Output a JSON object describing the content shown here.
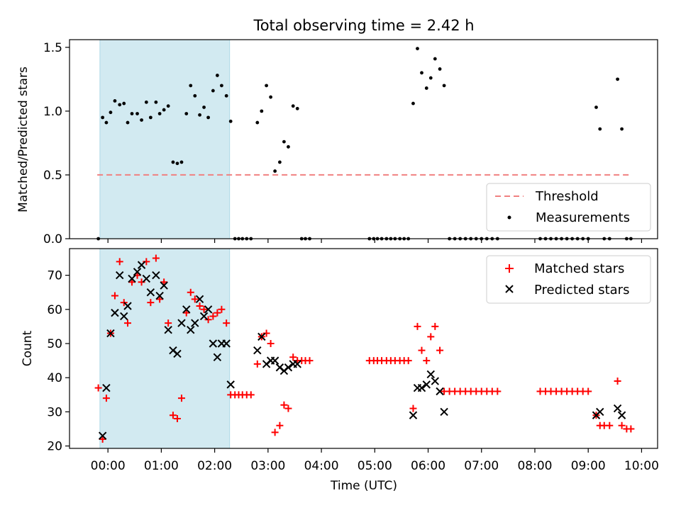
{
  "title": "Total observing time = 2.42 h",
  "x_label": "Time (UTC)",
  "x_ticks": [
    "00:00",
    "01:00",
    "02:00",
    "03:00",
    "04:00",
    "05:00",
    "06:00",
    "07:00",
    "08:00",
    "09:00",
    "10:00"
  ],
  "chart_data": [
    {
      "type": "scatter",
      "panel": "top",
      "ylabel": "Matched/Predicted stars",
      "xlim": [
        -0.72,
        10.3
      ],
      "ylim": [
        0,
        1.56
      ],
      "yticks": [
        "0.0",
        "0.5",
        "1.0",
        "1.5"
      ],
      "shaded_interval": [
        -0.15,
        2.28
      ],
      "shade_color": "#add8e6",
      "threshold": {
        "name": "Threshold",
        "value": 0.5,
        "x_range": [
          -0.2,
          9.8
        ],
        "color": "#f08080",
        "style": "dashed"
      },
      "series": [
        {
          "name": "Measurements",
          "marker": "dot",
          "color": "#000000",
          "points": [
            [
              -0.18,
              0.0
            ],
            [
              -0.1,
              0.95
            ],
            [
              -0.03,
              0.91
            ],
            [
              0.05,
              0.99
            ],
            [
              0.13,
              1.08
            ],
            [
              0.22,
              1.05
            ],
            [
              0.3,
              1.06
            ],
            [
              0.37,
              0.91
            ],
            [
              0.45,
              0.98
            ],
            [
              0.55,
              0.98
            ],
            [
              0.63,
              0.93
            ],
            [
              0.72,
              1.07
            ],
            [
              0.8,
              0.95
            ],
            [
              0.9,
              1.07
            ],
            [
              0.97,
              0.98
            ],
            [
              1.05,
              1.01
            ],
            [
              1.13,
              1.04
            ],
            [
              1.22,
              0.6
            ],
            [
              1.3,
              0.59
            ],
            [
              1.38,
              0.6
            ],
            [
              1.47,
              0.98
            ],
            [
              1.55,
              1.2
            ],
            [
              1.63,
              1.12
            ],
            [
              1.72,
              0.97
            ],
            [
              1.8,
              1.03
            ],
            [
              1.88,
              0.95
            ],
            [
              1.97,
              1.16
            ],
            [
              2.05,
              1.28
            ],
            [
              2.13,
              1.2
            ],
            [
              2.22,
              1.12
            ],
            [
              2.3,
              0.92
            ],
            [
              2.38,
              0.0
            ],
            [
              2.45,
              0.0
            ],
            [
              2.52,
              0.0
            ],
            [
              2.6,
              0.0
            ],
            [
              2.68,
              0.0
            ],
            [
              2.8,
              0.91
            ],
            [
              2.88,
              1.0
            ],
            [
              2.97,
              1.2
            ],
            [
              3.05,
              1.11
            ],
            [
              3.13,
              0.53
            ],
            [
              3.22,
              0.6
            ],
            [
              3.3,
              0.76
            ],
            [
              3.38,
              0.72
            ],
            [
              3.47,
              1.04
            ],
            [
              3.55,
              1.02
            ],
            [
              3.63,
              0.0
            ],
            [
              3.7,
              0.0
            ],
            [
              3.78,
              0.0
            ],
            [
              4.9,
              0.0
            ],
            [
              4.98,
              0.0
            ],
            [
              5.05,
              0.0
            ],
            [
              5.13,
              0.0
            ],
            [
              5.22,
              0.0
            ],
            [
              5.3,
              0.0
            ],
            [
              5.38,
              0.0
            ],
            [
              5.47,
              0.0
            ],
            [
              5.55,
              0.0
            ],
            [
              5.63,
              0.0
            ],
            [
              5.72,
              1.06
            ],
            [
              5.8,
              1.49
            ],
            [
              5.88,
              1.3
            ],
            [
              5.97,
              1.18
            ],
            [
              6.05,
              1.26
            ],
            [
              6.13,
              1.41
            ],
            [
              6.22,
              1.33
            ],
            [
              6.3,
              1.2
            ],
            [
              6.4,
              0.0
            ],
            [
              6.5,
              0.0
            ],
            [
              6.6,
              0.0
            ],
            [
              6.7,
              0.0
            ],
            [
              6.8,
              0.0
            ],
            [
              6.9,
              0.0
            ],
            [
              7.0,
              0.0
            ],
            [
              7.1,
              0.0
            ],
            [
              7.2,
              0.0
            ],
            [
              7.3,
              0.0
            ],
            [
              8.1,
              0.0
            ],
            [
              8.2,
              0.0
            ],
            [
              8.3,
              0.0
            ],
            [
              8.4,
              0.0
            ],
            [
              8.5,
              0.0
            ],
            [
              8.6,
              0.0
            ],
            [
              8.7,
              0.0
            ],
            [
              8.8,
              0.0
            ],
            [
              8.9,
              0.0
            ],
            [
              9.0,
              0.0
            ],
            [
              9.15,
              1.03
            ],
            [
              9.22,
              0.86
            ],
            [
              9.3,
              0.0
            ],
            [
              9.4,
              0.0
            ],
            [
              9.55,
              1.25
            ],
            [
              9.63,
              0.86
            ],
            [
              9.72,
              0.0
            ],
            [
              9.8,
              0.0
            ]
          ]
        }
      ],
      "legend": [
        "Threshold",
        "Measurements"
      ],
      "legend_position": "lower-right"
    },
    {
      "type": "scatter",
      "panel": "bottom",
      "ylabel": "Count",
      "xlabel": "Time (UTC)",
      "xlim": [
        -0.72,
        10.3
      ],
      "ylim": [
        19.3,
        77.8
      ],
      "yticks": [
        "20",
        "30",
        "40",
        "50",
        "60",
        "70"
      ],
      "shaded_interval": [
        -0.15,
        2.28
      ],
      "shade_color": "#add8e6",
      "series": [
        {
          "name": "Matched stars",
          "marker": "plus",
          "color": "#ff0000",
          "points": [
            [
              -0.18,
              37
            ],
            [
              -0.1,
              22
            ],
            [
              -0.03,
              34
            ],
            [
              0.05,
              53
            ],
            [
              0.13,
              64
            ],
            [
              0.22,
              74
            ],
            [
              0.3,
              62
            ],
            [
              0.37,
              56
            ],
            [
              0.45,
              68
            ],
            [
              0.55,
              70
            ],
            [
              0.63,
              68
            ],
            [
              0.72,
              74
            ],
            [
              0.8,
              62
            ],
            [
              0.9,
              75
            ],
            [
              0.97,
              63
            ],
            [
              1.05,
              68
            ],
            [
              1.13,
              56
            ],
            [
              1.22,
              29
            ],
            [
              1.3,
              28
            ],
            [
              1.38,
              34
            ],
            [
              1.47,
              59
            ],
            [
              1.55,
              65
            ],
            [
              1.63,
              63
            ],
            [
              1.72,
              61
            ],
            [
              1.8,
              60
            ],
            [
              1.88,
              57
            ],
            [
              1.97,
              58
            ],
            [
              2.05,
              59
            ],
            [
              2.13,
              60
            ],
            [
              2.22,
              56
            ],
            [
              2.3,
              35
            ],
            [
              2.38,
              35
            ],
            [
              2.45,
              35
            ],
            [
              2.52,
              35
            ],
            [
              2.6,
              35
            ],
            [
              2.68,
              35
            ],
            [
              2.8,
              44
            ],
            [
              2.88,
              52
            ],
            [
              2.97,
              53
            ],
            [
              3.05,
              50
            ],
            [
              3.13,
              24
            ],
            [
              3.22,
              26
            ],
            [
              3.3,
              32
            ],
            [
              3.38,
              31
            ],
            [
              3.47,
              46
            ],
            [
              3.55,
              45
            ],
            [
              3.63,
              45
            ],
            [
              3.7,
              45
            ],
            [
              3.78,
              45
            ],
            [
              4.9,
              45
            ],
            [
              4.98,
              45
            ],
            [
              5.05,
              45
            ],
            [
              5.13,
              45
            ],
            [
              5.22,
              45
            ],
            [
              5.3,
              45
            ],
            [
              5.38,
              45
            ],
            [
              5.47,
              45
            ],
            [
              5.55,
              45
            ],
            [
              5.63,
              45
            ],
            [
              5.72,
              31
            ],
            [
              5.8,
              55
            ],
            [
              5.88,
              48
            ],
            [
              5.97,
              45
            ],
            [
              6.05,
              52
            ],
            [
              6.13,
              55
            ],
            [
              6.22,
              48
            ],
            [
              6.3,
              36
            ],
            [
              6.4,
              36
            ],
            [
              6.5,
              36
            ],
            [
              6.6,
              36
            ],
            [
              6.7,
              36
            ],
            [
              6.8,
              36
            ],
            [
              6.9,
              36
            ],
            [
              7.0,
              36
            ],
            [
              7.1,
              36
            ],
            [
              7.2,
              36
            ],
            [
              7.3,
              36
            ],
            [
              8.1,
              36
            ],
            [
              8.2,
              36
            ],
            [
              8.3,
              36
            ],
            [
              8.4,
              36
            ],
            [
              8.5,
              36
            ],
            [
              8.6,
              36
            ],
            [
              8.7,
              36
            ],
            [
              8.8,
              36
            ],
            [
              8.9,
              36
            ],
            [
              9.0,
              36
            ],
            [
              9.15,
              29
            ],
            [
              9.22,
              26
            ],
            [
              9.3,
              26
            ],
            [
              9.4,
              26
            ],
            [
              9.55,
              39
            ],
            [
              9.63,
              26
            ],
            [
              9.72,
              25
            ],
            [
              9.8,
              25
            ]
          ]
        },
        {
          "name": "Predicted stars",
          "marker": "cross",
          "color": "#000000",
          "points": [
            [
              -0.1,
              23
            ],
            [
              -0.03,
              37
            ],
            [
              0.05,
              53
            ],
            [
              0.13,
              59
            ],
            [
              0.22,
              70
            ],
            [
              0.3,
              58
            ],
            [
              0.37,
              61
            ],
            [
              0.45,
              69
            ],
            [
              0.55,
              71
            ],
            [
              0.63,
              73
            ],
            [
              0.72,
              69
            ],
            [
              0.8,
              65
            ],
            [
              0.9,
              70
            ],
            [
              0.97,
              64
            ],
            [
              1.05,
              67
            ],
            [
              1.13,
              54
            ],
            [
              1.22,
              48
            ],
            [
              1.3,
              47
            ],
            [
              1.38,
              56
            ],
            [
              1.47,
              60
            ],
            [
              1.55,
              54
            ],
            [
              1.63,
              56
            ],
            [
              1.72,
              63
            ],
            [
              1.8,
              58
            ],
            [
              1.88,
              60
            ],
            [
              1.97,
              50
            ],
            [
              2.05,
              46
            ],
            [
              2.13,
              50
            ],
            [
              2.22,
              50
            ],
            [
              2.3,
              38
            ],
            [
              2.8,
              48
            ],
            [
              2.88,
              52
            ],
            [
              2.97,
              44
            ],
            [
              3.05,
              45
            ],
            [
              3.13,
              45
            ],
            [
              3.22,
              43
            ],
            [
              3.3,
              42
            ],
            [
              3.38,
              43
            ],
            [
              3.47,
              44
            ],
            [
              3.55,
              44
            ],
            [
              5.72,
              29
            ],
            [
              5.8,
              37
            ],
            [
              5.88,
              37
            ],
            [
              5.97,
              38
            ],
            [
              6.05,
              41
            ],
            [
              6.13,
              39
            ],
            [
              6.22,
              36
            ],
            [
              6.3,
              30
            ],
            [
              9.15,
              29
            ],
            [
              9.22,
              30
            ],
            [
              9.55,
              31
            ],
            [
              9.63,
              29
            ]
          ]
        }
      ],
      "legend": [
        "Matched stars",
        "Predicted stars"
      ],
      "legend_position": "upper-right"
    }
  ]
}
